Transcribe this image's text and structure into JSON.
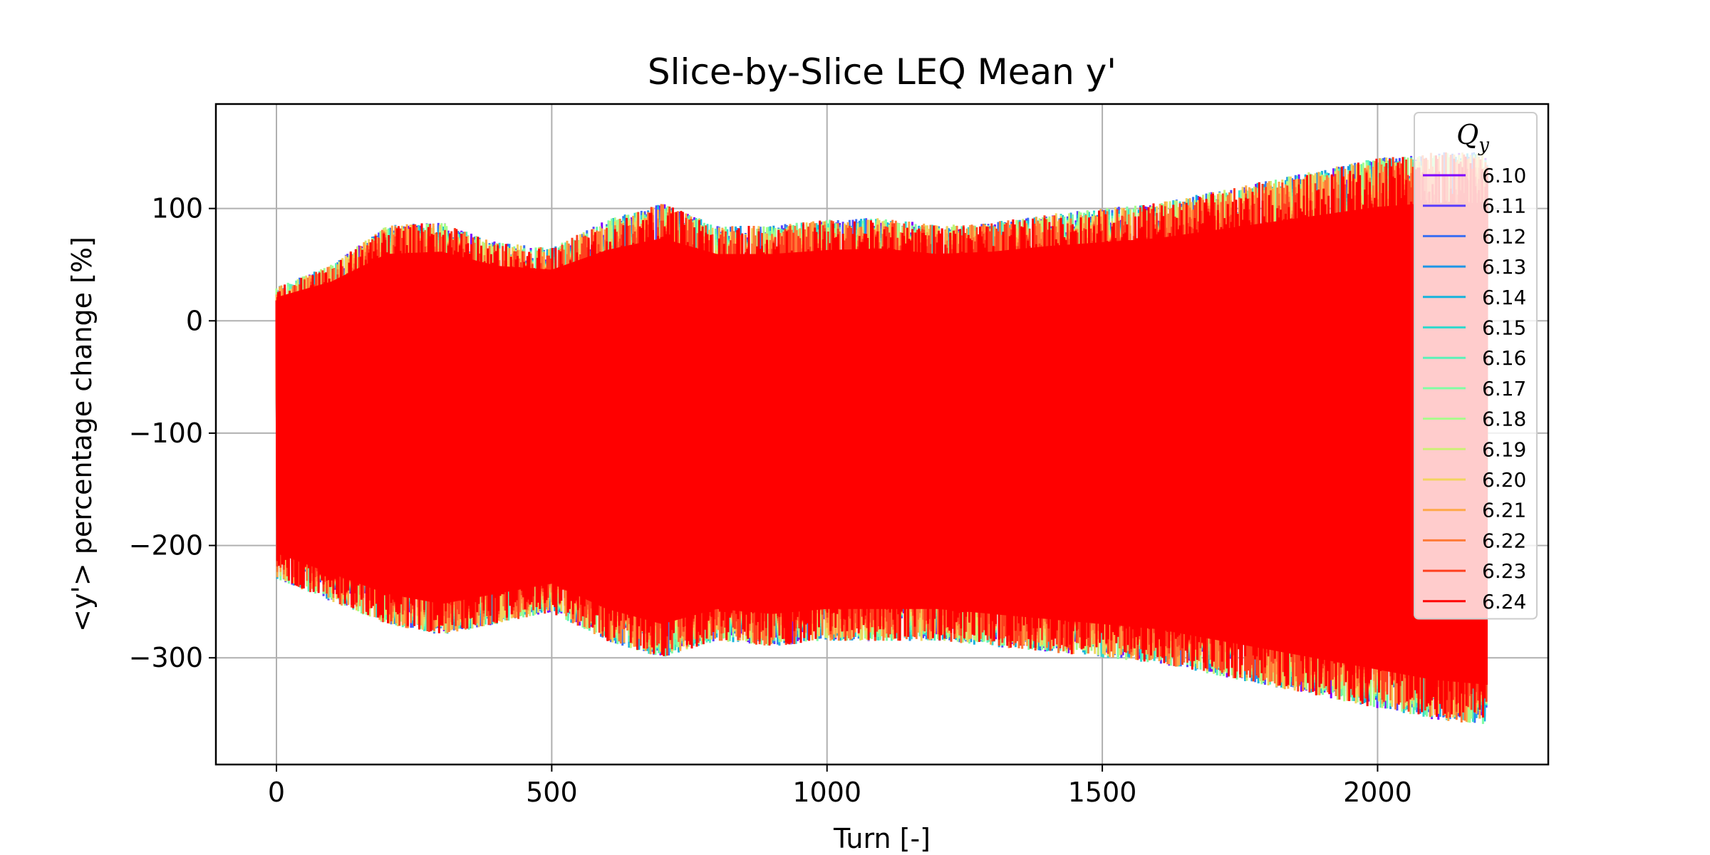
{
  "chart_data": {
    "type": "line",
    "title": "Slice-by-Slice LEQ Mean y'",
    "xlabel": "Turn [-]",
    "ylabel": "<y'> percentage change [%]",
    "xlim": [
      -110,
      2310
    ],
    "ylim": [
      -395,
      193
    ],
    "xticks": [
      0,
      500,
      1000,
      1500,
      2000
    ],
    "yticks": [
      100,
      0,
      -100,
      -200,
      -300
    ],
    "grid": true,
    "legend": {
      "title": "Q",
      "title_subscript": "y",
      "placement": "upper right"
    },
    "series": [
      {
        "name": "6.10",
        "color": "#7f00ff"
      },
      {
        "name": "6.11",
        "color": "#5a3ffb"
      },
      {
        "name": "6.12",
        "color": "#3b6ff2"
      },
      {
        "name": "6.13",
        "color": "#1e96e6"
      },
      {
        "name": "6.14",
        "color": "#17b4dc"
      },
      {
        "name": "6.15",
        "color": "#35d8cd"
      },
      {
        "name": "6.16",
        "color": "#5bf1b8"
      },
      {
        "name": "6.17",
        "color": "#81fda4"
      },
      {
        "name": "6.18",
        "color": "#a8fd8c"
      },
      {
        "name": "6.19",
        "color": "#ccef76"
      },
      {
        "name": "6.20",
        "color": "#f2d35e"
      },
      {
        "name": "6.21",
        "color": "#ffa847"
      },
      {
        "name": "6.22",
        "color": "#ff7a37"
      },
      {
        "name": "6.23",
        "color": "#ff3f1e"
      },
      {
        "name": "6.24",
        "color": "#ff0000"
      }
    ],
    "envelope": {
      "note_x": [
        0,
        100,
        200,
        300,
        400,
        500,
        600,
        700,
        800,
        900,
        1000,
        1100,
        1200,
        1300,
        1400,
        1500,
        1600,
        1700,
        1800,
        1900,
        2000,
        2100,
        2200
      ],
      "upper": [
        30,
        50,
        85,
        88,
        70,
        65,
        90,
        105,
        85,
        85,
        90,
        92,
        85,
        88,
        95,
        100,
        105,
        115,
        125,
        135,
        145,
        150,
        150
      ],
      "lower": [
        -230,
        -250,
        -270,
        -280,
        -270,
        -260,
        -285,
        -300,
        -285,
        -290,
        -285,
        -285,
        -285,
        -290,
        -295,
        -300,
        -305,
        -315,
        -325,
        -335,
        -345,
        -355,
        -360
      ]
    }
  }
}
